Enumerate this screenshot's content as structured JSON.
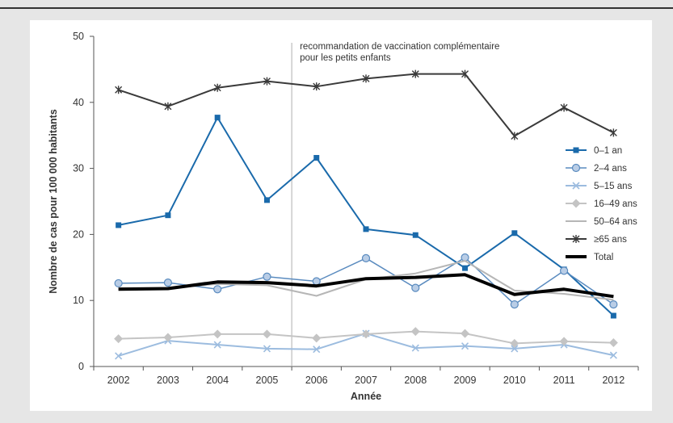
{
  "chart_data": {
    "type": "line",
    "title": "",
    "xlabel": "Année",
    "ylabel": "Nombre de cas pour 100 000 habitants",
    "x": [
      "2002",
      "2003",
      "2004",
      "2005",
      "2006",
      "2007",
      "2008",
      "2009",
      "2010",
      "2011",
      "2012"
    ],
    "ylim": [
      0,
      50
    ],
    "yticks": [
      0,
      10,
      20,
      30,
      40,
      50
    ],
    "grid": false,
    "legend_position": "right",
    "annotation": {
      "text_line1": "recommandation de vaccination complémentaire",
      "text_line2": "pour les petits enfants",
      "x_position_year": 2005.5
    },
    "series": [
      {
        "name": "0–1 an",
        "color": "#1a6aab",
        "marker": "square",
        "width": 2,
        "values": [
          21.4,
          22.9,
          37.7,
          25.2,
          31.6,
          20.8,
          19.9,
          14.9,
          20.2,
          14.7,
          7.7
        ]
      },
      {
        "name": "2–4 ans",
        "color": "#5a8bbf",
        "marker": "circle",
        "width": 1.5,
        "values": [
          12.6,
          12.7,
          11.7,
          13.6,
          12.9,
          16.4,
          11.9,
          16.5,
          9.4,
          14.5,
          9.4
        ]
      },
      {
        "name": "5–15 ans",
        "color": "#9cbcdf",
        "marker": "x",
        "width": 2,
        "values": [
          1.6,
          3.9,
          3.3,
          2.7,
          2.6,
          5.0,
          2.8,
          3.1,
          2.7,
          3.3,
          1.7
        ]
      },
      {
        "name": "16–49 ans",
        "color": "#c4c4c4",
        "marker": "diamond",
        "width": 2,
        "values": [
          4.2,
          4.4,
          4.9,
          4.9,
          4.3,
          4.9,
          5.3,
          5.0,
          3.5,
          3.8,
          3.6
        ]
      },
      {
        "name": "50–64 ans",
        "color": "#b6b6b6",
        "marker": "none",
        "width": 2,
        "values": [
          11.9,
          11.9,
          12.5,
          12.3,
          10.7,
          13.2,
          14.1,
          16.0,
          11.5,
          11.0,
          10.1
        ]
      },
      {
        "name": "≥65 ans",
        "color": "#3a3a3a",
        "marker": "star",
        "width": 2,
        "values": [
          41.9,
          39.4,
          42.2,
          43.2,
          42.4,
          43.6,
          44.3,
          44.3,
          34.9,
          39.2,
          35.4
        ]
      },
      {
        "name": "Total",
        "color": "#000000",
        "marker": "none",
        "width": 4,
        "values": [
          11.7,
          11.8,
          12.8,
          12.7,
          12.2,
          13.3,
          13.5,
          13.9,
          10.9,
          11.7,
          10.6
        ]
      }
    ]
  }
}
